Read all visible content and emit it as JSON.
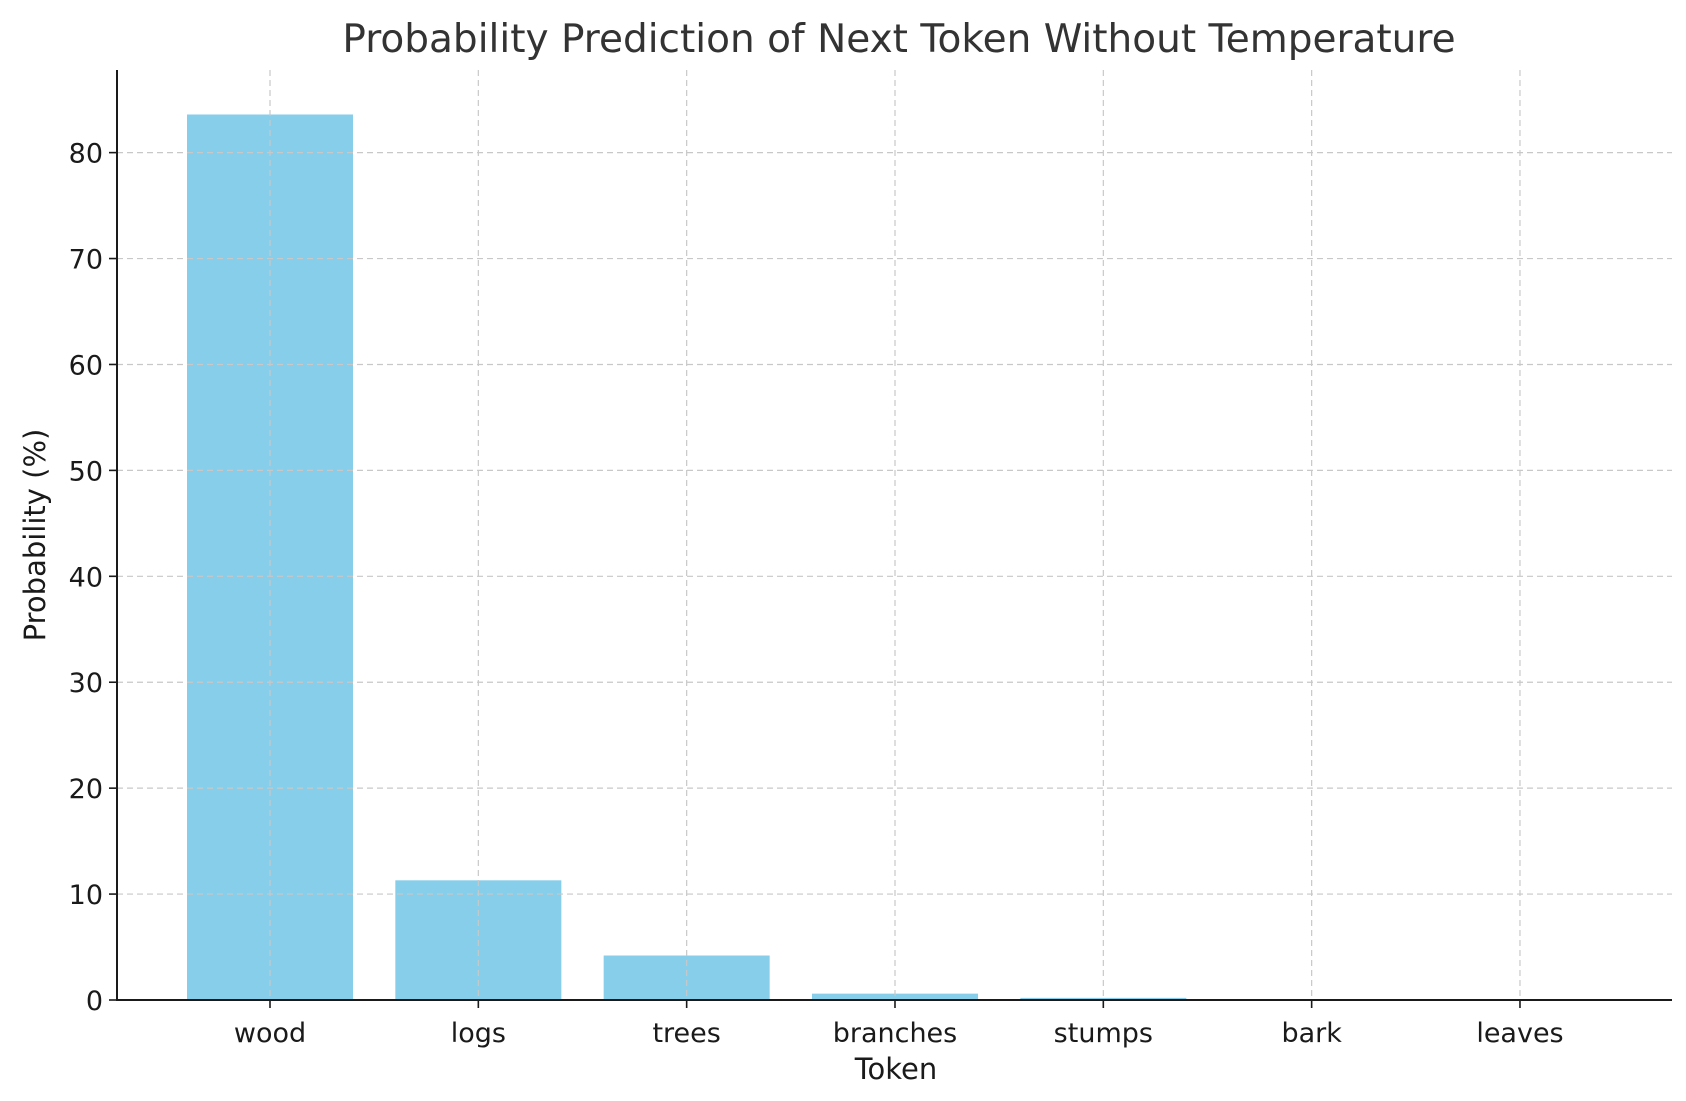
{
  "chart_data": {
    "type": "bar",
    "title": "Probability Prediction of Next Token Without Temperature",
    "xlabel": "Token",
    "ylabel": "Probability (%)",
    "categories": [
      "wood",
      "logs",
      "trees",
      "branches",
      "stumps",
      "bark",
      "leaves"
    ],
    "values": [
      83.6,
      11.3,
      4.2,
      0.6,
      0.2,
      0.05,
      0.03
    ],
    "ylim": [
      0,
      87.8
    ],
    "yticks": [
      0,
      10,
      20,
      30,
      40,
      50,
      60,
      70,
      80
    ],
    "grid": true,
    "bar_color": "#87CEEB"
  }
}
